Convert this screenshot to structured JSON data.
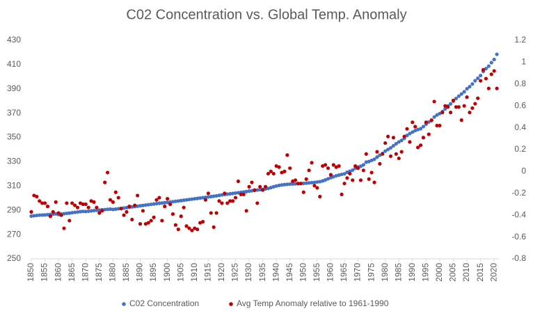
{
  "chart_data": {
    "type": "scatter",
    "title": "C02 Concentration vs. Global Temp. Anomaly",
    "x": [
      1850,
      1851,
      1852,
      1853,
      1854,
      1855,
      1856,
      1857,
      1858,
      1859,
      1860,
      1861,
      1862,
      1863,
      1864,
      1865,
      1866,
      1867,
      1868,
      1869,
      1870,
      1871,
      1872,
      1873,
      1874,
      1875,
      1876,
      1877,
      1878,
      1879,
      1880,
      1881,
      1882,
      1883,
      1884,
      1885,
      1886,
      1887,
      1888,
      1889,
      1890,
      1891,
      1892,
      1893,
      1894,
      1895,
      1896,
      1897,
      1898,
      1899,
      1900,
      1901,
      1902,
      1903,
      1904,
      1905,
      1906,
      1907,
      1908,
      1909,
      1910,
      1911,
      1912,
      1913,
      1914,
      1915,
      1916,
      1917,
      1918,
      1919,
      1920,
      1921,
      1922,
      1923,
      1924,
      1925,
      1926,
      1927,
      1928,
      1929,
      1930,
      1931,
      1932,
      1933,
      1934,
      1935,
      1936,
      1937,
      1938,
      1939,
      1940,
      1941,
      1942,
      1943,
      1944,
      1945,
      1946,
      1947,
      1948,
      1949,
      1950,
      1951,
      1952,
      1953,
      1954,
      1955,
      1956,
      1957,
      1958,
      1959,
      1960,
      1961,
      1962,
      1963,
      1964,
      1965,
      1966,
      1967,
      1968,
      1969,
      1970,
      1971,
      1972,
      1973,
      1974,
      1975,
      1976,
      1977,
      1978,
      1979,
      1980,
      1981,
      1982,
      1983,
      1984,
      1985,
      1986,
      1987,
      1988,
      1989,
      1990,
      1991,
      1992,
      1993,
      1994,
      1995,
      1996,
      1997,
      1998,
      1999,
      2000,
      2001,
      2002,
      2003,
      2004,
      2005,
      2006,
      2007,
      2008,
      2009,
      2010,
      2011,
      2012,
      2013,
      2014,
      2015,
      2016,
      2017,
      2018,
      2019,
      2020,
      2021
    ],
    "series": [
      {
        "name": "C02 Concentration",
        "color": "#4472c4",
        "values": [
          285.2,
          285.5,
          285.8,
          286.0,
          286.1,
          286.2,
          286.4,
          286.6,
          286.8,
          287.0,
          286.5,
          286.9,
          287.2,
          287.5,
          287.7,
          288.0,
          288.3,
          288.6,
          288.9,
          289.1,
          289.0,
          289.2,
          289.5,
          289.8,
          290.0,
          290.2,
          290.4,
          290.6,
          290.8,
          291.0,
          290.7,
          291.0,
          291.3,
          291.6,
          291.9,
          292.2,
          292.5,
          292.8,
          293.1,
          293.4,
          293.7,
          294.0,
          294.3,
          294.6,
          294.9,
          295.2,
          295.5,
          295.8,
          296.0,
          296.3,
          296.5,
          296.8,
          297.1,
          297.4,
          297.7,
          298.0,
          298.3,
          298.6,
          298.9,
          299.2,
          299.5,
          299.8,
          300.1,
          300.4,
          300.7,
          301.0,
          301.3,
          301.6,
          301.9,
          302.3,
          302.7,
          303.0,
          303.3,
          303.6,
          303.9,
          304.2,
          304.5,
          304.8,
          305.1,
          305.4,
          305.8,
          306.1,
          306.4,
          306.7,
          307.0,
          307.3,
          307.6,
          308.0,
          308.7,
          309.4,
          310.0,
          310.5,
          310.9,
          311.2,
          311.4,
          311.6,
          311.7,
          311.8,
          311.9,
          312.0,
          312.2,
          312.4,
          312.6,
          312.8,
          313.0,
          313.3,
          313.6,
          314.2,
          315.0,
          315.97,
          316.91,
          317.64,
          318.45,
          318.99,
          319.62,
          320.04,
          321.37,
          322.18,
          323.05,
          324.62,
          325.68,
          326.32,
          327.46,
          329.68,
          330.19,
          331.13,
          332.03,
          333.84,
          335.41,
          336.84,
          338.76,
          340.12,
          341.48,
          343.15,
          344.87,
          346.35,
          347.61,
          349.31,
          351.69,
          353.2,
          354.45,
          355.7,
          356.54,
          357.21,
          358.96,
          360.97,
          362.74,
          363.88,
          366.84,
          368.54,
          369.71,
          371.32,
          373.45,
          375.98,
          377.7,
          379.98,
          382.09,
          384.02,
          385.83,
          387.64,
          390.1,
          391.85,
          394.06,
          396.74,
          398.81,
          401.01,
          404.41,
          406.76,
          408.72,
          411.66,
          414.24,
          418.5
        ]
      },
      {
        "name": "Avg Temp Anomaly relative to 1961-1990",
        "color": "#c00000",
        "axis": "y2",
        "values": [
          -0.37,
          -0.22,
          -0.23,
          -0.27,
          -0.29,
          -0.29,
          -0.32,
          -0.41,
          -0.37,
          -0.28,
          -0.38,
          -0.4,
          -0.52,
          -0.29,
          -0.45,
          -0.29,
          -0.31,
          -0.33,
          -0.29,
          -0.3,
          -0.3,
          -0.33,
          -0.27,
          -0.28,
          -0.33,
          -0.38,
          -0.36,
          -0.1,
          -0.01,
          -0.26,
          -0.28,
          -0.19,
          -0.24,
          -0.34,
          -0.4,
          -0.37,
          -0.32,
          -0.44,
          -0.31,
          -0.22,
          -0.48,
          -0.36,
          -0.48,
          -0.47,
          -0.45,
          -0.42,
          -0.26,
          -0.24,
          -0.45,
          -0.32,
          -0.25,
          -0.3,
          -0.39,
          -0.49,
          -0.53,
          -0.41,
          -0.33,
          -0.5,
          -0.52,
          -0.54,
          -0.52,
          -0.53,
          -0.47,
          -0.46,
          -0.26,
          -0.2,
          -0.38,
          -0.51,
          -0.38,
          -0.27,
          -0.29,
          -0.2,
          -0.29,
          -0.27,
          -0.27,
          -0.24,
          -0.09,
          -0.21,
          -0.21,
          -0.36,
          -0.14,
          -0.1,
          -0.17,
          -0.29,
          -0.14,
          -0.17,
          -0.14,
          -0.02,
          0.0,
          -0.02,
          0.05,
          0.04,
          -0.01,
          0.0,
          0.15,
          0.03,
          -0.09,
          -0.08,
          -0.11,
          -0.11,
          -0.19,
          -0.07,
          0.01,
          0.08,
          -0.13,
          -0.15,
          -0.23,
          0.05,
          0.06,
          0.03,
          -0.03,
          0.06,
          0.04,
          0.05,
          -0.21,
          -0.11,
          -0.06,
          -0.02,
          -0.08,
          0.05,
          0.03,
          -0.08,
          0.01,
          0.16,
          -0.07,
          -0.01,
          -0.1,
          0.18,
          0.07,
          0.16,
          0.26,
          0.32,
          0.14,
          0.31,
          0.16,
          0.12,
          0.18,
          0.32,
          0.39,
          0.27,
          0.45,
          0.41,
          0.22,
          0.24,
          0.31,
          0.45,
          0.34,
          0.47,
          0.64,
          0.42,
          0.42,
          0.54,
          0.6,
          0.59,
          0.54,
          0.65,
          0.59,
          0.59,
          0.47,
          0.6,
          0.68,
          0.54,
          0.58,
          0.62,
          0.67,
          0.83,
          0.93,
          0.85,
          0.76,
          0.89,
          0.92,
          0.76
        ]
      }
    ],
    "xlim": [
      1850,
      2022
    ],
    "xticks": [
      1850,
      1855,
      1860,
      1865,
      1870,
      1875,
      1880,
      1885,
      1890,
      1895,
      1900,
      1905,
      1910,
      1915,
      1920,
      1925,
      1930,
      1935,
      1940,
      1945,
      1950,
      1955,
      1960,
      1965,
      1970,
      1975,
      1980,
      1985,
      1990,
      1995,
      2000,
      2005,
      2010,
      2015,
      2020
    ],
    "ylim": [
      250,
      430
    ],
    "yticks": [
      250,
      270,
      290,
      310,
      330,
      350,
      370,
      390,
      410,
      430
    ],
    "y2lim": [
      -0.8,
      1.2
    ],
    "y2ticks": [
      -0.8,
      -0.6,
      -0.4,
      -0.2,
      0,
      0.2,
      0.4,
      0.6,
      0.8,
      1,
      1.2
    ],
    "legend": "bottom"
  }
}
